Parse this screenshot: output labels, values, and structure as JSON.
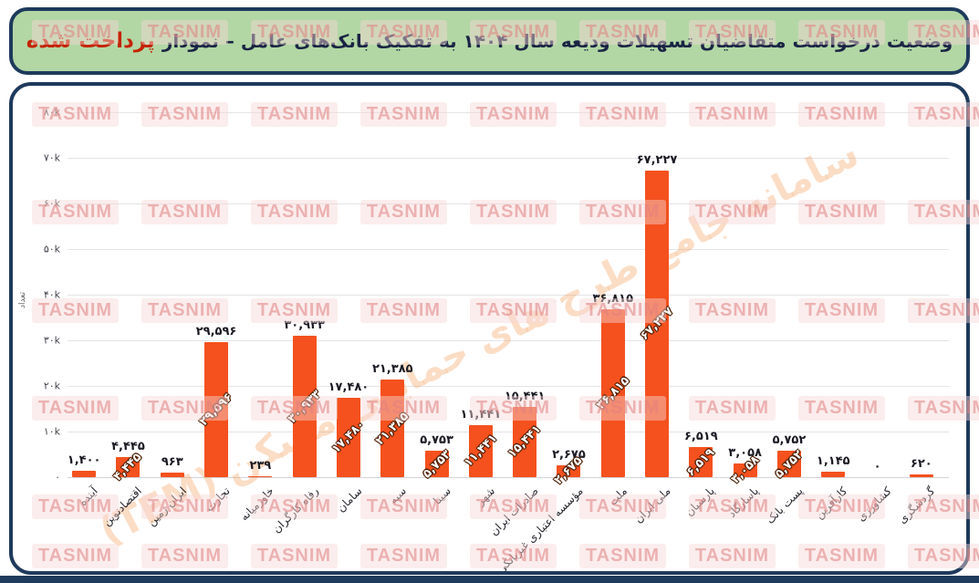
{
  "title": {
    "prefix": "وضعیت درخواست متقاضیان تسهیلات ودیعه سال ۱۴۰۴ به تفکیک بانک‌های عامل – نمودار",
    "highlight": "پرداخت شده"
  },
  "watermark": {
    "badge": "TASNIM",
    "diagonal": "سامانه جامع طرح های حمایتی مسکن (TEM)"
  },
  "chart_data": {
    "type": "bar",
    "title": "وضعیت درخواست متقاضیان تسهیلات ودیعه سال ۱۴۰۴ به تفکیک بانک‌های عامل – نمودار پرداخت شده",
    "xlabel": "",
    "ylabel": "تعداد",
    "ylim": [
      0,
      80000
    ],
    "grid": true,
    "legend_position": "none",
    "bar_color": "#f4511e",
    "yticks": [
      {
        "value": 80000,
        "label": "۸۰k"
      },
      {
        "value": 70000,
        "label": "۷۰k"
      },
      {
        "value": 60000,
        "label": "۶۰k"
      },
      {
        "value": 50000,
        "label": "۵۰k"
      },
      {
        "value": 40000,
        "label": "۴۰k"
      },
      {
        "value": 30000,
        "label": "۳۰k"
      },
      {
        "value": 20000,
        "label": "۲۰k"
      },
      {
        "value": 10000,
        "label": "۱۰k"
      },
      {
        "value": 0,
        "label": "۰"
      }
    ],
    "bars": [
      {
        "name": "آینده",
        "value": 1400,
        "label": "۱,۴۰۰",
        "inside_label": false
      },
      {
        "name": "اقتصادنوین",
        "value": 4445,
        "label": "۴,۴۴۵",
        "inside_label": true
      },
      {
        "name": "ایران زمین",
        "value": 963,
        "label": "۹۶۳",
        "inside_label": false
      },
      {
        "name": "تجارت",
        "value": 29596,
        "label": "۲۹,۵۹۶",
        "inside_label": true
      },
      {
        "name": "خاورمیانه",
        "value": 239,
        "label": "۲۳۹",
        "inside_label": false
      },
      {
        "name": "رفاه کارگران",
        "value": 30933,
        "label": "۳۰,۹۳۳",
        "inside_label": true
      },
      {
        "name": "سامان",
        "value": 17480,
        "label": "۱۷,۴۸۰",
        "inside_label": true
      },
      {
        "name": "سپه",
        "value": 21385,
        "label": "۲۱,۳۸۵",
        "inside_label": true
      },
      {
        "name": "سینا",
        "value": 5753,
        "label": "۵,۷۵۳",
        "inside_label": true
      },
      {
        "name": "شهر",
        "value": 11441,
        "label": "۱۱,۴۴۱",
        "inside_label": true
      },
      {
        "name": "صادرات ایران",
        "value": 15441,
        "label": "۱۵,۴۴۱",
        "inside_label": true
      },
      {
        "name": "مؤسسه اعتباری غیربانکی ملل",
        "value": 2675,
        "label": "۲,۶۷۵",
        "inside_label": true
      },
      {
        "name": "ملت",
        "value": 36815,
        "label": "۳۶,۸۱۵",
        "inside_label": true
      },
      {
        "name": "ملی ایران",
        "value": 67227,
        "label": "۶۷,۲۲۷",
        "inside_label": true
      },
      {
        "name": "پارسیان",
        "value": 6519,
        "label": "۶,۵۱۹",
        "inside_label": true
      },
      {
        "name": "پاسارگاد",
        "value": 3058,
        "label": "۳,۰۵۸",
        "inside_label": true
      },
      {
        "name": "پست بانک",
        "value": 5752,
        "label": "۵,۷۵۲",
        "inside_label": true
      },
      {
        "name": "کارآفرین",
        "value": 1145,
        "label": "۱,۱۴۵",
        "inside_label": false
      },
      {
        "name": "کشاورزی",
        "value": 0,
        "label": "۰",
        "inside_label": false
      },
      {
        "name": "گردشگری",
        "value": 620,
        "label": "۶۲۰",
        "inside_label": false
      }
    ]
  }
}
